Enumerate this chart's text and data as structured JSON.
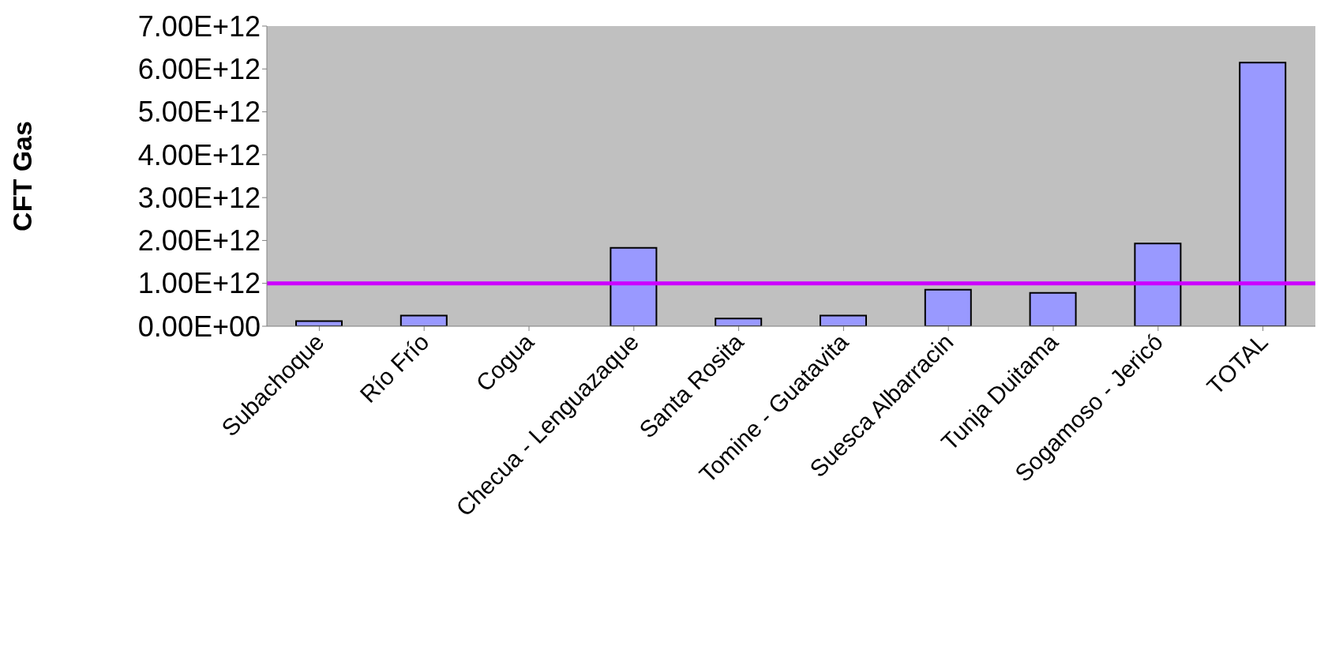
{
  "chart_data": {
    "type": "bar",
    "ylabel": "CFT Gas",
    "categories": [
      "Subachoque",
      "Río Frío",
      "Cogua",
      "Checua - Lenguazaque",
      "Santa Rosita",
      "Tomine - Guatavita",
      "Suesca Albarracin",
      "Tunja Duitama",
      "Sogamoso - Jericó",
      "TOTAL"
    ],
    "values": [
      120000000000.0,
      250000000000.0,
      0,
      1830000000000.0,
      180000000000.0,
      250000000000.0,
      850000000000.0,
      780000000000.0,
      1930000000000.0,
      6150000000000.0
    ],
    "color": "#9999ff",
    "ylim": [
      0,
      7000000000000.0
    ],
    "yticks": [
      {
        "value": 0,
        "label": "0.00E+00"
      },
      {
        "value": 1000000000000.0,
        "label": "1.00E+12"
      },
      {
        "value": 2000000000000.0,
        "label": "2.00E+12"
      },
      {
        "value": 3000000000000.0,
        "label": "3.00E+12"
      },
      {
        "value": 4000000000000.0,
        "label": "4.00E+12"
      },
      {
        "value": 5000000000000.0,
        "label": "5.00E+12"
      },
      {
        "value": 6000000000000.0,
        "label": "6.00E+12"
      },
      {
        "value": 7000000000000.0,
        "label": "7.00E+12"
      }
    ],
    "ref_lines": [
      {
        "axis": "y",
        "value": 1000000000000.0,
        "color": "#cc00ff"
      }
    ],
    "legend": false
  }
}
